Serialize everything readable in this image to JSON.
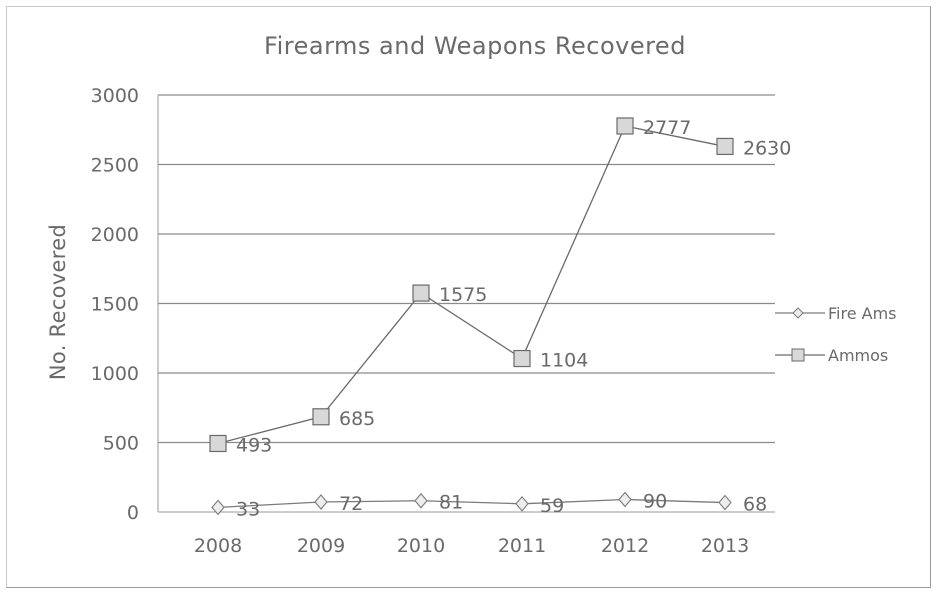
{
  "chart_data": {
    "type": "line",
    "title": "Firearms and Weapons Recovered",
    "xlabel": "",
    "ylabel": "No. Recovered",
    "categories": [
      "2008",
      "2009",
      "2010",
      "2011",
      "2012",
      "2013"
    ],
    "ylim": [
      0,
      3000
    ],
    "yticks": [
      0,
      500,
      1000,
      1500,
      2000,
      2500,
      3000
    ],
    "grid": true,
    "legend_position": "right",
    "series": [
      {
        "name": "Fire Ams",
        "values": [
          33,
          72,
          81,
          59,
          90,
          68
        ],
        "marker": "diamond",
        "color": "#7a7a7a"
      },
      {
        "name": "Ammos",
        "values": [
          493,
          685,
          1575,
          1104,
          2777,
          2630
        ],
        "marker": "square",
        "color": "#6a6a6a"
      }
    ]
  }
}
